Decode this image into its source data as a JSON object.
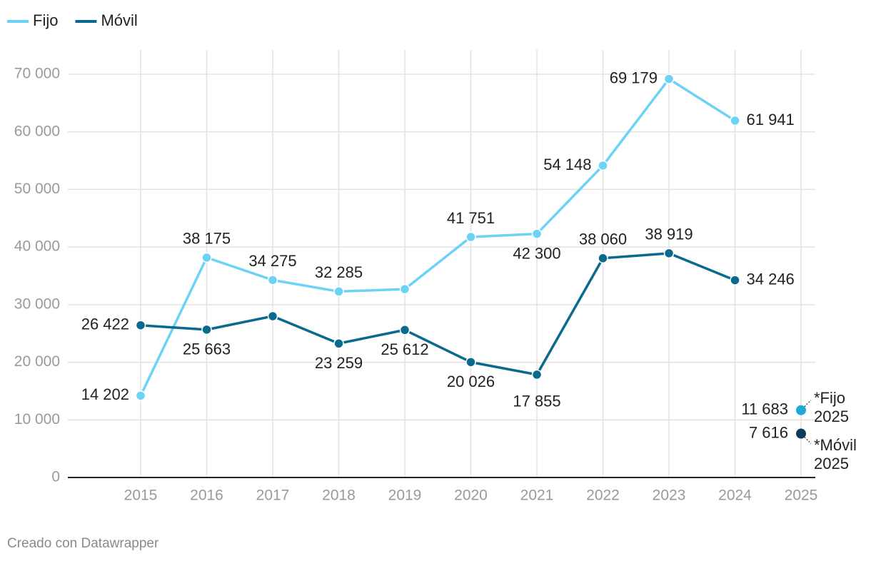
{
  "chart_data": {
    "type": "line",
    "categories": [
      "2015",
      "2016",
      "2017",
      "2018",
      "2019",
      "2020",
      "2021",
      "2022",
      "2023",
      "2024",
      "2025"
    ],
    "series": [
      {
        "name": "Fijo",
        "color": "#6dd3f5",
        "values": [
          14202,
          38175,
          34275,
          32285,
          32700,
          41751,
          42300,
          54148,
          69179,
          61941,
          null
        ],
        "value_labels": [
          "14 202",
          "38 175",
          "34 275",
          "32 285",
          null,
          "41 751",
          "42 300",
          "54 148",
          "69 179",
          "61 941",
          null
        ]
      },
      {
        "name": "Móvil",
        "color": "#0a6a8e",
        "values": [
          26422,
          25663,
          28000,
          23259,
          25612,
          20026,
          17855,
          38060,
          38919,
          34246,
          null
        ],
        "value_labels": [
          "26 422",
          "25 663",
          null,
          "23 259",
          "25 612",
          "20 026",
          "17 855",
          "38 060",
          "38 919",
          "34 246",
          null
        ]
      }
    ],
    "annotations": [
      {
        "text": "*Fijo 2025",
        "value": 11683,
        "value_label": "11 683",
        "color": "#1fa8d8"
      },
      {
        "text": "*Móvil 2025",
        "value": 7616,
        "value_label": "7 616",
        "color": "#0b3b5c"
      }
    ],
    "ylim": [
      0,
      70000
    ],
    "yticks": [
      0,
      {
        "value": 10000,
        "label": "10 000"
      },
      {
        "value": 20000,
        "label": "20 000"
      },
      {
        "value": 30000,
        "label": "30 000"
      },
      {
        "value": 40000,
        "label": "40 000"
      },
      {
        "value": 50000,
        "label": "50 000"
      },
      {
        "value": 60000,
        "label": "60 000"
      },
      {
        "value": 70000,
        "label": "70 000"
      }
    ],
    "grid": true,
    "legend": "top-left",
    "footer": "Creado con Datawrapper"
  }
}
